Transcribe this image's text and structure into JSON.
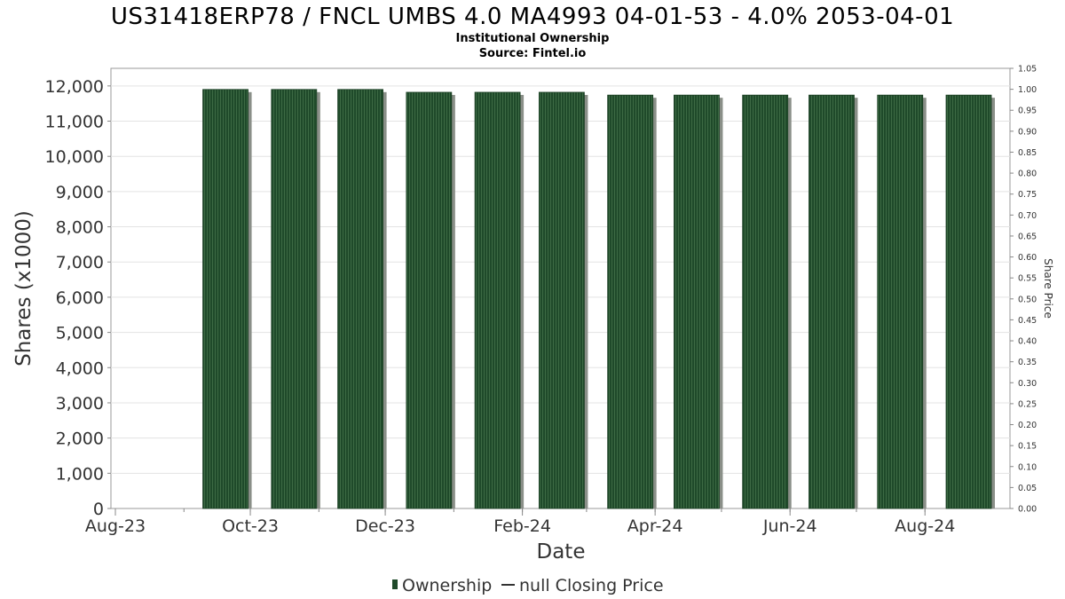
{
  "chart_data": {
    "type": "bar",
    "title": "US31418ERP78 / FNCL UMBS 4.0 MA4993 04-01-53 - 4.0% 2053-04-01",
    "subtitle_lines": [
      "Institutional Ownership",
      "Source: Fintel.io"
    ],
    "xlabel": "Date",
    "ylabel": "Shares (x1000)",
    "y2label": "Share Price",
    "x_tick_labels": [
      "Aug-23",
      "Oct-23",
      "Dec-23",
      "Feb-24",
      "Apr-24",
      "Jun-24",
      "Aug-24"
    ],
    "y_tick_labels": [
      "0",
      "1,000",
      "2,000",
      "3,000",
      "4,000",
      "5,000",
      "6,000",
      "7,000",
      "8,000",
      "9,000",
      "10,000",
      "11,000",
      "12,000"
    ],
    "y2_tick_labels": [
      "0.00",
      "0.05",
      "0.10",
      "0.15",
      "0.20",
      "0.25",
      "0.30",
      "0.35",
      "0.40",
      "0.45",
      "0.50",
      "0.55",
      "0.60",
      "0.65",
      "0.70",
      "0.75",
      "0.80",
      "0.85",
      "0.90",
      "0.95",
      "1.00",
      "1.05"
    ],
    "ylim": [
      0,
      12500
    ],
    "y2lim": [
      0,
      1.05
    ],
    "xlim": [
      "2023-08-01",
      "2024-08-31"
    ],
    "grid": true,
    "legend_position": "bottom",
    "series": [
      {
        "name": "Ownership",
        "color": "#1f4a2a",
        "x": [
          "2023-09-30",
          "2023-10-31",
          "2023-11-30",
          "2023-12-31",
          "2024-01-31",
          "2024-02-29",
          "2024-03-31",
          "2024-04-30",
          "2024-05-31",
          "2024-06-30",
          "2024-07-31",
          "2024-08-31"
        ],
        "values": [
          11900,
          11900,
          11900,
          11820,
          11820,
          11820,
          11740,
          11740,
          11740,
          11740,
          11740,
          11740
        ]
      }
    ],
    "legend": [
      {
        "label": "Ownership",
        "symbol": "bar",
        "color": "#1f4a2a"
      },
      {
        "label": "null Closing Price",
        "symbol": "line",
        "color": "#333333"
      }
    ]
  }
}
